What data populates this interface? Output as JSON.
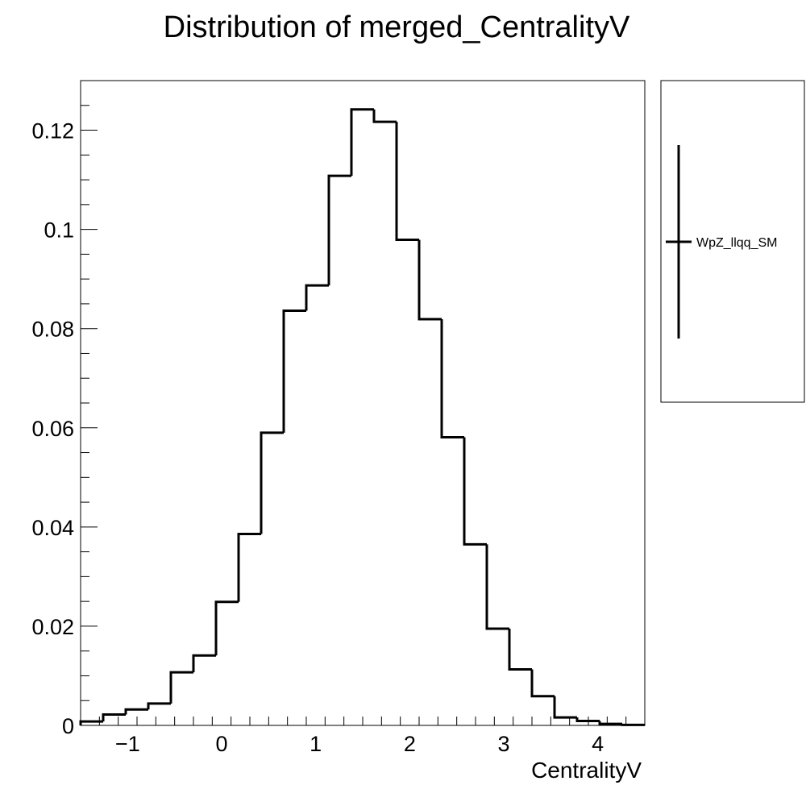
{
  "chart_data": {
    "type": "bar",
    "title": "Distribution of merged_CentralityV",
    "xlabel": "CentralityV",
    "ylabel": "",
    "xlim": [
      -1.5,
      4.5
    ],
    "ylim": [
      0,
      0.13
    ],
    "x_ticks": [
      -1,
      0,
      1,
      2,
      3,
      4
    ],
    "x_tick_labels": [
      "−1",
      "0",
      "1",
      "2",
      "3",
      "4"
    ],
    "y_ticks": [
      0,
      0.02,
      0.04,
      0.06,
      0.08,
      0.1,
      0.12
    ],
    "y_tick_labels": [
      "0",
      "0.02",
      "0.04",
      "0.06",
      "0.08",
      "0.1",
      "0.12"
    ],
    "bin_edges": [
      -1.5,
      -1.26,
      -1.02,
      -0.78,
      -0.54,
      -0.3,
      -0.06,
      0.18,
      0.42,
      0.66,
      0.9,
      1.14,
      1.38,
      1.62,
      1.86,
      2.1,
      2.34,
      2.58,
      2.82,
      3.06,
      3.3,
      3.54,
      3.78,
      4.02,
      4.26,
      4.5
    ],
    "series": [
      {
        "name": "WpZ_llqq_SM",
        "values": [
          0.0008,
          0.0022,
          0.0032,
          0.0044,
          0.0107,
          0.0141,
          0.0249,
          0.0386,
          0.059,
          0.0836,
          0.0887,
          0.1108,
          0.1242,
          0.1217,
          0.0979,
          0.0819,
          0.0581,
          0.0365,
          0.0195,
          0.0113,
          0.0059,
          0.0016,
          0.0009,
          0.0003,
          0.0001
        ]
      }
    ],
    "legend_position": "top-right"
  }
}
